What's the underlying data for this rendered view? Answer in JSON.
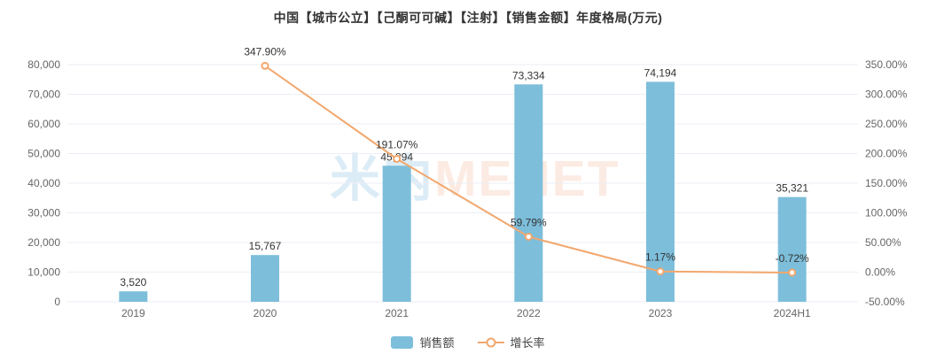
{
  "watermark": {
    "cn": "米内",
    "en": "MENET"
  },
  "legend": {
    "bar_label": "销售额",
    "line_label": "增长率"
  },
  "colors": {
    "bar": "#7dbedb",
    "line": "#f2a76d",
    "grid": "#ebeef5",
    "axis_text": "#666666",
    "label_text": "#333333",
    "title_text": "#333333",
    "watermark_cn": "#dcecf6",
    "watermark_en": "#fcebe3"
  },
  "chart_data": {
    "type": "bar",
    "title": "中国【城市公立】【己酮可可碱】【注射】【销售金额】年度格局(万元)",
    "categories": [
      "2019",
      "2020",
      "2021",
      "2022",
      "2023",
      "2024H1"
    ],
    "series": [
      {
        "name": "销售额",
        "type": "bar",
        "axis": "left",
        "values": [
          3520,
          15767,
          45894,
          73334,
          74194,
          35321
        ],
        "labels": [
          "3,520",
          "15,767",
          "45,894",
          "73,334",
          "74,194",
          "35,321"
        ]
      },
      {
        "name": "增长率",
        "type": "line",
        "axis": "right",
        "values": [
          null,
          347.9,
          191.07,
          59.79,
          1.17,
          -0.72
        ],
        "labels": [
          null,
          "347.90%",
          "191.07%",
          "59.79%",
          "1.17%",
          "-0.72%"
        ]
      }
    ],
    "left_axis": {
      "min": 0,
      "max": 80000,
      "step": 10000,
      "tick_labels": [
        "0",
        "10,000",
        "20,000",
        "30,000",
        "40,000",
        "50,000",
        "60,000",
        "70,000",
        "80,000"
      ]
    },
    "right_axis": {
      "min": -50,
      "max": 350,
      "step": 50,
      "tick_labels": [
        "-50.00%",
        "0.00%",
        "50.00%",
        "100.00%",
        "150.00%",
        "200.00%",
        "250.00%",
        "300.00%",
        "350.00%"
      ]
    },
    "grid": true,
    "legend_position": "bottom"
  }
}
